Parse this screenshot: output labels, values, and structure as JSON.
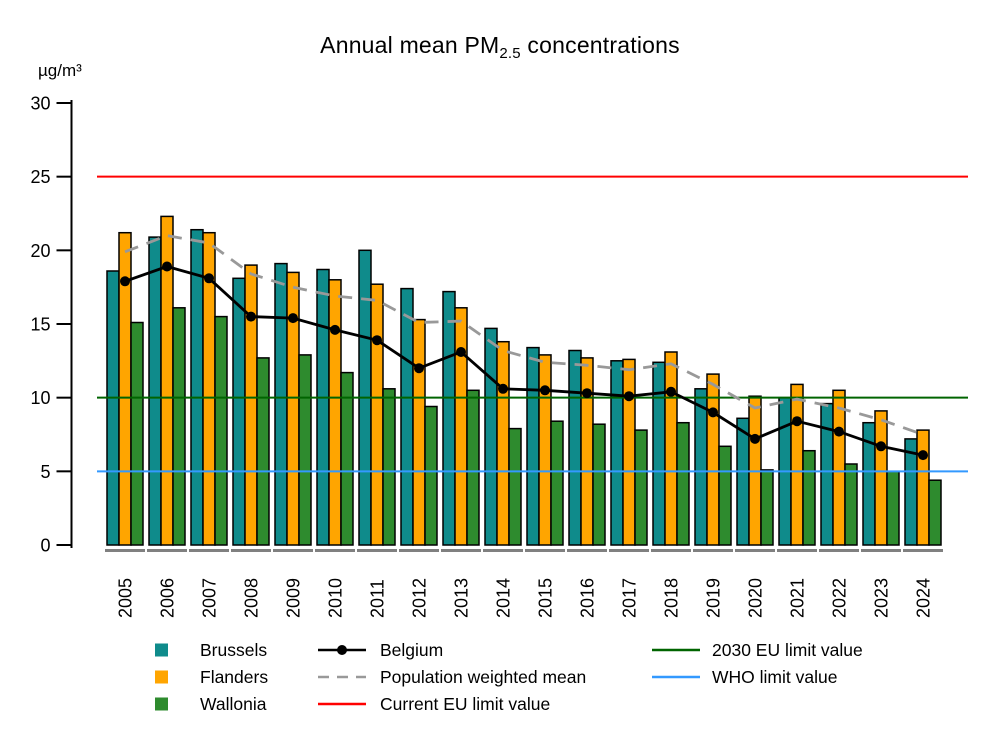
{
  "title": {
    "prefix": "Annual mean PM",
    "subscript": "2.5",
    "suffix": " concentrations"
  },
  "y_axis": {
    "unit_label": "µg/m³",
    "ticks": [
      0,
      5,
      10,
      15,
      20,
      25,
      30
    ]
  },
  "chart_data": {
    "type": "bar",
    "title": "Annual mean PM2.5 concentrations",
    "xlabel": "",
    "ylabel": "µg/m³",
    "ylim": [
      0,
      30
    ],
    "grid": false,
    "legend_position": "bottom",
    "categories": [
      2005,
      2006,
      2007,
      2008,
      2009,
      2010,
      2011,
      2012,
      2013,
      2014,
      2015,
      2016,
      2017,
      2018,
      2019,
      2020,
      2021,
      2022,
      2023,
      2024
    ],
    "series": [
      {
        "name": "Brussels",
        "type": "bar",
        "color": "#0F8B8B",
        "values": [
          18.6,
          20.9,
          21.4,
          18.1,
          19.1,
          18.7,
          20.0,
          17.4,
          17.2,
          14.7,
          13.4,
          13.2,
          12.5,
          12.4,
          10.6,
          8.6,
          10.0,
          9.6,
          8.3,
          7.2
        ]
      },
      {
        "name": "Flanders",
        "type": "bar",
        "color": "#FFA500",
        "values": [
          21.2,
          22.3,
          21.2,
          19.0,
          18.5,
          18.0,
          17.7,
          15.3,
          16.1,
          13.8,
          12.9,
          12.7,
          12.6,
          13.1,
          11.6,
          10.1,
          10.9,
          10.5,
          9.1,
          7.8
        ]
      },
      {
        "name": "Wallonia",
        "type": "bar",
        "color": "#2E8B2E",
        "values": [
          15.1,
          16.1,
          15.5,
          12.7,
          12.9,
          11.7,
          10.6,
          9.4,
          10.5,
          7.9,
          8.4,
          8.2,
          7.8,
          8.3,
          6.7,
          5.1,
          6.4,
          5.5,
          5.0,
          4.4
        ]
      },
      {
        "name": "Belgium",
        "type": "line",
        "style": "solid-dot",
        "color": "#000000",
        "values": [
          17.9,
          18.9,
          18.1,
          15.5,
          15.4,
          14.6,
          13.9,
          12.0,
          13.1,
          10.6,
          10.5,
          10.3,
          10.1,
          10.4,
          9.0,
          7.2,
          8.4,
          7.7,
          6.7,
          6.1
        ]
      },
      {
        "name": "Population weighted mean",
        "type": "line",
        "style": "dashed",
        "color": "#999999",
        "values": [
          19.9,
          21.0,
          20.5,
          18.4,
          17.5,
          16.9,
          16.6,
          15.1,
          15.2,
          13.2,
          12.4,
          12.2,
          11.9,
          12.3,
          10.9,
          9.3,
          9.9,
          9.3,
          8.5,
          7.5
        ]
      }
    ],
    "reference_lines": [
      {
        "name": "Current EU limit value",
        "value": 25,
        "color": "#FF0000"
      },
      {
        "name": "2030 EU limit value",
        "value": 10,
        "color": "#006400"
      },
      {
        "name": "WHO limit value",
        "value": 5,
        "color": "#3399FF"
      }
    ]
  },
  "legend": {
    "columns": [
      {
        "items": [
          {
            "label": "Brussels",
            "swatch": "square",
            "color": "#0F8B8B"
          },
          {
            "label": "Flanders",
            "swatch": "square",
            "color": "#FFA500"
          },
          {
            "label": "Wallonia",
            "swatch": "square",
            "color": "#2E8B2E"
          }
        ]
      },
      {
        "items": [
          {
            "label": "Belgium",
            "swatch": "line-dot",
            "color": "#000000"
          },
          {
            "label": "Population weighted mean",
            "swatch": "line-dashed",
            "color": "#999999"
          },
          {
            "label": "Current EU limit value",
            "swatch": "line",
            "color": "#FF0000"
          }
        ]
      },
      {
        "items": [
          {
            "label": "2030 EU limit value",
            "swatch": "line",
            "color": "#006400"
          },
          {
            "label": "WHO limit value",
            "swatch": "line",
            "color": "#3399FF"
          }
        ]
      }
    ]
  }
}
